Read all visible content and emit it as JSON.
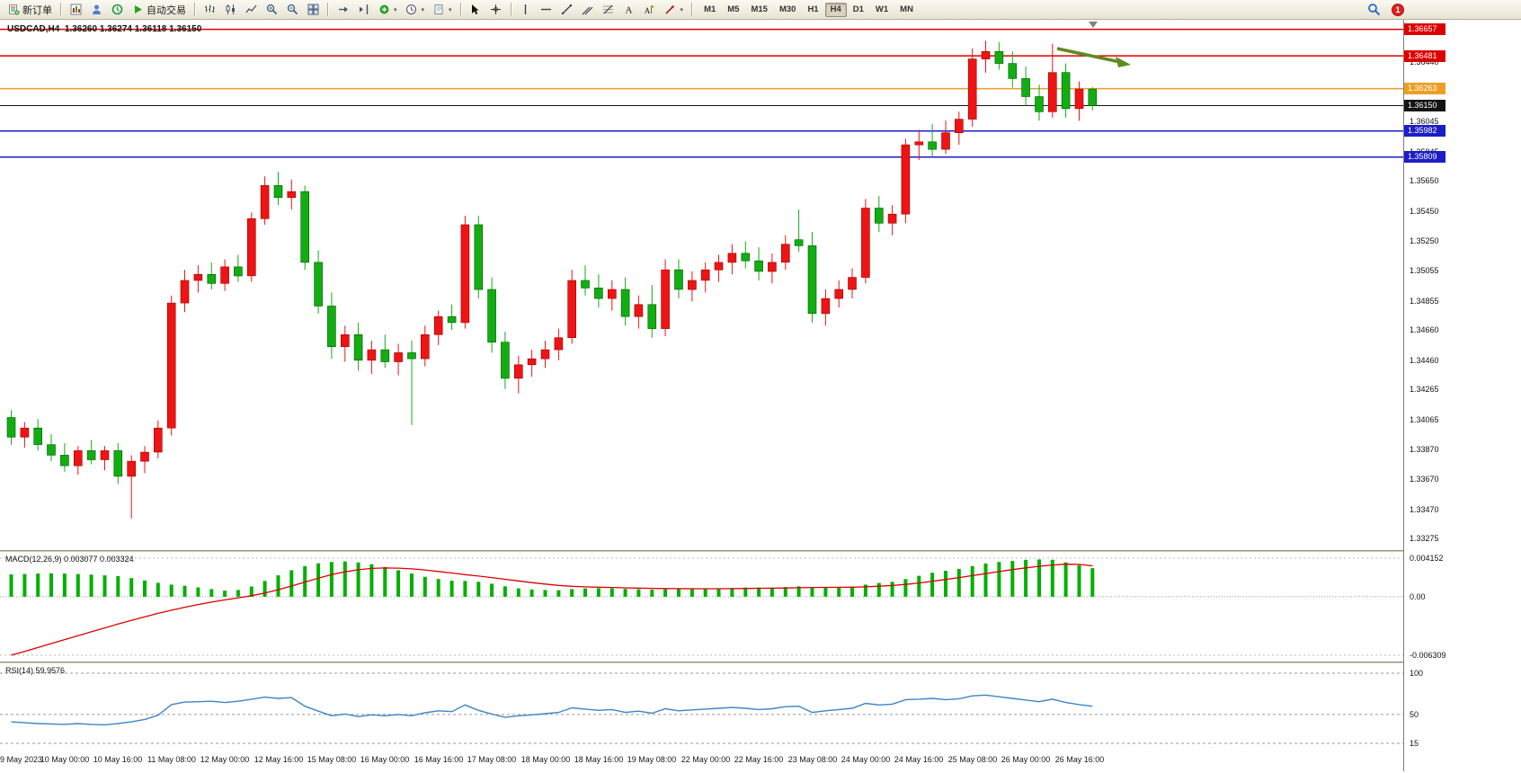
{
  "toolbar": {
    "new_order": "新订单",
    "auto_trading": "自动交易",
    "timeframes": [
      "M1",
      "M5",
      "M15",
      "M30",
      "H1",
      "H4",
      "D1",
      "W1",
      "MN"
    ],
    "active_timeframe": "H4",
    "notification_count": "1"
  },
  "chart": {
    "title": "USDCAD,H4  1.36260 1.36274 1.36118 1.36150",
    "symbol": "USDCAD",
    "period": "H4",
    "ohlc": {
      "open": "1.36260",
      "high": "1.36274",
      "low": "1.36118",
      "close": "1.36150"
    },
    "current_price": 1.3615,
    "price_scale_labels": [
      "1.36440",
      "1.36245",
      "1.36045",
      "1.35845",
      "1.35650",
      "1.35450",
      "1.35250",
      "1.35055",
      "1.34855",
      "1.34660",
      "1.34460",
      "1.34265",
      "1.34065",
      "1.33870",
      "1.33670",
      "1.33470",
      "1.33275"
    ],
    "price_lines": [
      {
        "label": "1.36657",
        "value": 1.36657,
        "color": "#dd0000"
      },
      {
        "label": "1.36481",
        "value": 1.36481,
        "color": "#dd0000"
      },
      {
        "label": "1.36263",
        "value": 1.36263,
        "color": "#ec9f26"
      },
      {
        "label": "1.36150",
        "value": 1.3615,
        "color": "#141414"
      },
      {
        "label": "1.35982",
        "value": 1.35982,
        "color": "#1d1dc4"
      },
      {
        "label": "1.35809",
        "value": 1.35809,
        "color": "#1d1dc4"
      }
    ],
    "annotations": [
      {
        "type": "arrow",
        "direction": "down-right",
        "color": "#5f8b1d"
      }
    ]
  },
  "chart_data": {
    "type": "candlestick",
    "symbol": "USDCAD",
    "timeframe": "H4",
    "price_panel": {
      "type": "candlestick",
      "up_color": "#ee1414",
      "down_color": "#12ad12",
      "y_range": [
        1.332,
        1.3672
      ],
      "label_every_n_candles": 4,
      "time_labels": [
        "9 May 2023",
        "10 May 00:00",
        "10 May 16:00",
        "11 May 08:00",
        "12 May 00:00",
        "12 May 16:00",
        "15 May 08:00",
        "16 May 00:00",
        "16 May 16:00",
        "17 May 08:00",
        "18 May 00:00",
        "18 May 16:00",
        "19 May 08:00",
        "22 May 00:00",
        "22 May 16:00",
        "23 May 08:00",
        "24 May 00:00",
        "24 May 16:00",
        "25 May 08:00",
        "26 May 00:00",
        "26 May 16:00"
      ],
      "candles": [
        [
          1.3408,
          1.3413,
          1.339,
          1.3395
        ],
        [
          1.3395,
          1.3405,
          1.3388,
          1.3401
        ],
        [
          1.3401,
          1.3407,
          1.3386,
          1.339
        ],
        [
          1.339,
          1.3397,
          1.3379,
          1.3383
        ],
        [
          1.3383,
          1.3391,
          1.3372,
          1.3376
        ],
        [
          1.3376,
          1.3389,
          1.337,
          1.3386
        ],
        [
          1.3386,
          1.3393,
          1.3377,
          1.338
        ],
        [
          1.338,
          1.3389,
          1.3373,
          1.3386
        ],
        [
          1.3386,
          1.3391,
          1.3364,
          1.3369
        ],
        [
          1.3369,
          1.3383,
          1.3341,
          1.3379
        ],
        [
          1.3379,
          1.3389,
          1.3371,
          1.3385
        ],
        [
          1.3385,
          1.3406,
          1.3381,
          1.3401
        ],
        [
          1.3401,
          1.3489,
          1.3396,
          1.3484
        ],
        [
          1.3484,
          1.3506,
          1.3478,
          1.3499
        ],
        [
          1.3499,
          1.3509,
          1.3491,
          1.3503
        ],
        [
          1.3503,
          1.3511,
          1.3493,
          1.3497
        ],
        [
          1.3497,
          1.3513,
          1.3492,
          1.3508
        ],
        [
          1.3508,
          1.3516,
          1.3498,
          1.3502
        ],
        [
          1.3502,
          1.3544,
          1.3498,
          1.354
        ],
        [
          1.354,
          1.3568,
          1.3536,
          1.3562
        ],
        [
          1.3562,
          1.3571,
          1.3549,
          1.3554
        ],
        [
          1.3554,
          1.3566,
          1.3546,
          1.3558
        ],
        [
          1.3558,
          1.3562,
          1.3506,
          1.3511
        ],
        [
          1.3511,
          1.3519,
          1.3477,
          1.3482
        ],
        [
          1.3482,
          1.3491,
          1.3447,
          1.3455
        ],
        [
          1.3455,
          1.3469,
          1.3445,
          1.3463
        ],
        [
          1.3463,
          1.3471,
          1.3439,
          1.3446
        ],
        [
          1.3446,
          1.3459,
          1.3437,
          1.3453
        ],
        [
          1.3453,
          1.3463,
          1.3441,
          1.3445
        ],
        [
          1.3445,
          1.3457,
          1.3436,
          1.3451
        ],
        [
          1.3451,
          1.3459,
          1.3403,
          1.3447
        ],
        [
          1.3447,
          1.3469,
          1.3442,
          1.3463
        ],
        [
          1.3463,
          1.3479,
          1.3456,
          1.3475
        ],
        [
          1.3475,
          1.3483,
          1.3466,
          1.3471
        ],
        [
          1.3471,
          1.3542,
          1.3467,
          1.3536
        ],
        [
          1.3536,
          1.3542,
          1.3487,
          1.3493
        ],
        [
          1.3493,
          1.3501,
          1.3451,
          1.3458
        ],
        [
          1.3458,
          1.3465,
          1.3427,
          1.3434
        ],
        [
          1.3434,
          1.3449,
          1.3424,
          1.3443
        ],
        [
          1.3443,
          1.3453,
          1.3435,
          1.3447
        ],
        [
          1.3447,
          1.3459,
          1.3441,
          1.3453
        ],
        [
          1.3453,
          1.3467,
          1.3446,
          1.3461
        ],
        [
          1.3461,
          1.3506,
          1.3457,
          1.3499
        ],
        [
          1.3499,
          1.3509,
          1.3489,
          1.3494
        ],
        [
          1.3494,
          1.3503,
          1.3481,
          1.3487
        ],
        [
          1.3487,
          1.3499,
          1.3479,
          1.3493
        ],
        [
          1.3493,
          1.3501,
          1.3469,
          1.3475
        ],
        [
          1.3475,
          1.3489,
          1.3467,
          1.3483
        ],
        [
          1.3483,
          1.3496,
          1.3461,
          1.3467
        ],
        [
          1.3467,
          1.3513,
          1.3462,
          1.3506
        ],
        [
          1.3506,
          1.3513,
          1.3487,
          1.3493
        ],
        [
          1.3493,
          1.3505,
          1.3485,
          1.3499
        ],
        [
          1.3499,
          1.3511,
          1.3491,
          1.3506
        ],
        [
          1.3506,
          1.3516,
          1.3498,
          1.3511
        ],
        [
          1.3511,
          1.3523,
          1.3503,
          1.3517
        ],
        [
          1.3517,
          1.3525,
          1.3507,
          1.3512
        ],
        [
          1.3512,
          1.3521,
          1.3499,
          1.3505
        ],
        [
          1.3505,
          1.3517,
          1.3497,
          1.3511
        ],
        [
          1.3511,
          1.3529,
          1.3506,
          1.3523
        ],
        [
          1.3526,
          1.3546,
          1.3518,
          1.3522
        ],
        [
          1.3522,
          1.3531,
          1.3471,
          1.3477
        ],
        [
          1.3477,
          1.3493,
          1.3469,
          1.3487
        ],
        [
          1.3487,
          1.3499,
          1.3481,
          1.3493
        ],
        [
          1.3493,
          1.3507,
          1.3487,
          1.3501
        ],
        [
          1.3501,
          1.3553,
          1.3497,
          1.3547
        ],
        [
          1.3547,
          1.3555,
          1.3531,
          1.3537
        ],
        [
          1.3537,
          1.3549,
          1.3529,
          1.3543
        ],
        [
          1.3543,
          1.3593,
          1.3537,
          1.3589
        ],
        [
          1.3589,
          1.3599,
          1.3579,
          1.3591
        ],
        [
          1.3591,
          1.3603,
          1.3581,
          1.3586
        ],
        [
          1.3586,
          1.3605,
          1.3583,
          1.3597
        ],
        [
          1.3597,
          1.3611,
          1.3589,
          1.3606
        ],
        [
          1.3606,
          1.3653,
          1.3601,
          1.3646
        ],
        [
          1.3646,
          1.3658,
          1.3637,
          1.3651
        ],
        [
          1.3651,
          1.3657,
          1.3639,
          1.3643
        ],
        [
          1.3643,
          1.3651,
          1.3627,
          1.3633
        ],
        [
          1.3633,
          1.3641,
          1.3615,
          1.3621
        ],
        [
          1.3621,
          1.3629,
          1.3605,
          1.3611
        ],
        [
          1.3611,
          1.3656,
          1.3607,
          1.3637
        ],
        [
          1.3637,
          1.3643,
          1.3607,
          1.3613
        ],
        [
          1.3613,
          1.3631,
          1.3605,
          1.3626
        ],
        [
          1.3626,
          1.36274,
          1.36118,
          1.3615
        ]
      ]
    },
    "macd_panel": {
      "type": "bar+line",
      "label": "MACD(12,26,9) 0.003077 0.003324",
      "current_macd": 0.003077,
      "current_signal": 0.003324,
      "y_range": [
        -0.006309,
        0.004152
      ],
      "scale_labels": [
        "0.004152",
        "0.00",
        "-0.006309"
      ],
      "histogram_color": "#00b000",
      "signal_color": "#dd0000",
      "histogram": [
        0.0024,
        0.00245,
        0.0025,
        0.00252,
        0.0025,
        0.00245,
        0.00238,
        0.0023,
        0.00222,
        0.002,
        0.00175,
        0.0015,
        0.0013,
        0.00118,
        0.001,
        0.00082,
        0.00065,
        0.00072,
        0.0011,
        0.0017,
        0.0023,
        0.00285,
        0.0033,
        0.0036,
        0.00375,
        0.0038,
        0.0037,
        0.0035,
        0.0032,
        0.00285,
        0.0025,
        0.00215,
        0.0019,
        0.00172,
        0.0017,
        0.0016,
        0.0014,
        0.00112,
        0.0009,
        0.00078,
        0.00072,
        0.0007,
        0.00082,
        0.0009,
        0.00092,
        0.0009,
        0.00084,
        0.0008,
        0.00076,
        0.0008,
        0.00082,
        0.00082,
        0.00084,
        0.00088,
        0.00094,
        0.00098,
        0.00098,
        0.00098,
        0.00104,
        0.00112,
        0.00105,
        0.001,
        0.00102,
        0.0011,
        0.0013,
        0.00148,
        0.0016,
        0.0019,
        0.00225,
        0.00258,
        0.0028,
        0.003,
        0.0033,
        0.00358,
        0.00375,
        0.00385,
        0.00398,
        0.00402,
        0.00398,
        0.0037,
        0.0034,
        0.003077
      ],
      "signal": [
        -0.0063,
        -0.0059,
        -0.00548,
        -0.00505,
        -0.00462,
        -0.0042,
        -0.00378,
        -0.00336,
        -0.00295,
        -0.00255,
        -0.00216,
        -0.0018,
        -0.00146,
        -0.00114,
        -0.00085,
        -0.00058,
        -0.00034,
        -0.00012,
        0.0001,
        0.0004,
        0.00075,
        0.00115,
        0.00158,
        0.002,
        0.00238,
        0.00268,
        0.0029,
        0.00305,
        0.0031,
        0.00308,
        0.003,
        0.00288,
        0.00272,
        0.00255,
        0.00238,
        0.00222,
        0.00206,
        0.00188,
        0.0017,
        0.00152,
        0.00136,
        0.00122,
        0.00112,
        0.00106,
        0.00102,
        0.00099,
        0.00096,
        0.00093,
        0.0009,
        0.00088,
        0.00087,
        0.00086,
        0.00086,
        0.00086,
        0.00087,
        0.00089,
        0.00091,
        0.00092,
        0.00094,
        0.00097,
        0.00099,
        0.001,
        0.00101,
        0.00102,
        0.00106,
        0.00113,
        0.00121,
        0.00132,
        0.00148,
        0.00166,
        0.00186,
        0.00206,
        0.00227,
        0.00249,
        0.00271,
        0.00292,
        0.00311,
        0.00328,
        0.00342,
        0.0035,
        0.00348,
        0.003324
      ]
    },
    "rsi_panel": {
      "type": "line",
      "label": "RSI(14) 59.9576",
      "current": 59.9576,
      "line_color": "#3d85c8",
      "levels": [
        100,
        50,
        15
      ],
      "scale_labels": [
        "100",
        "50",
        "15"
      ],
      "values": [
        41,
        40,
        39,
        38.5,
        38,
        39,
        38,
        37.5,
        39,
        41,
        44,
        49,
        62,
        65,
        65.5,
        66,
        64.5,
        66,
        68.5,
        71,
        69.5,
        70.5,
        60,
        54,
        48.5,
        50.5,
        47.5,
        49.5,
        48.5,
        50,
        48.5,
        52,
        54.5,
        53.5,
        61.5,
        55,
        50.5,
        46.5,
        48.5,
        49.5,
        51,
        52.5,
        58,
        56.5,
        55,
        56,
        52.5,
        54,
        51.5,
        57,
        54.5,
        55.5,
        56.5,
        57.5,
        58.5,
        57.5,
        56,
        57,
        59.5,
        60,
        52.5,
        54.5,
        56,
        57.5,
        63.5,
        61.5,
        62.5,
        68,
        68.5,
        69.5,
        68,
        69,
        72.5,
        73.5,
        71.5,
        69.5,
        67.5,
        65.5,
        68.5,
        64.5,
        62,
        59.9576
      ]
    }
  }
}
